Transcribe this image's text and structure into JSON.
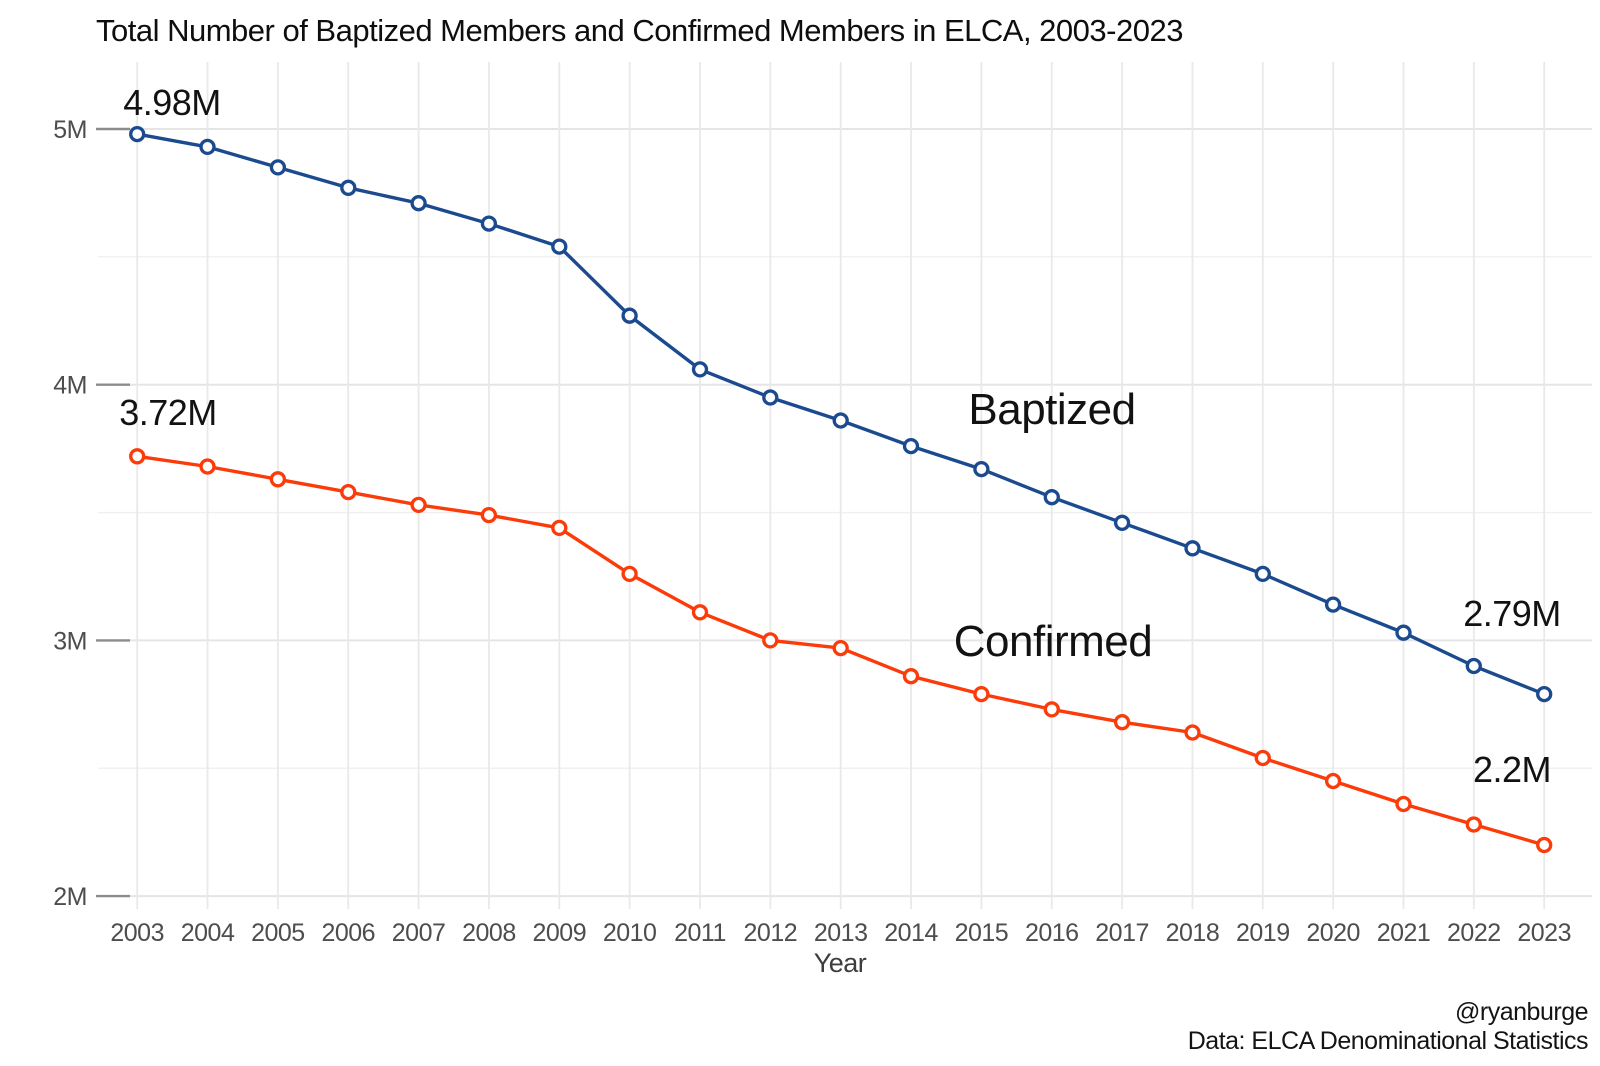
{
  "title": "Total Number of Baptized Members and Confirmed Members in ELCA, 2003-2023",
  "captions": {
    "handle": "@ryanburge",
    "source": "Data: ELCA Denominational Statistics"
  },
  "chart_data": {
    "type": "line",
    "x": [
      2003,
      2004,
      2005,
      2006,
      2007,
      2008,
      2009,
      2010,
      2011,
      2012,
      2013,
      2014,
      2015,
      2016,
      2017,
      2018,
      2019,
      2020,
      2021,
      2022,
      2023
    ],
    "xlabel": "Year",
    "ylabel": "",
    "ylim": [
      2,
      5
    ],
    "yticks": [
      2,
      3,
      4,
      5
    ],
    "ytick_labels": [
      "2M",
      "3M",
      "4M",
      "5M"
    ],
    "yminor": [
      2.5,
      3.5,
      4.5
    ],
    "grid": "major-and-minor-horizontal, major-vertical",
    "legend_position": "inline-labels",
    "series": [
      {
        "name": "Baptized",
        "color": "#1b4a8f",
        "values": [
          4.98,
          4.93,
          4.85,
          4.77,
          4.71,
          4.63,
          4.54,
          4.27,
          4.06,
          3.95,
          3.86,
          3.76,
          3.67,
          3.56,
          3.46,
          3.36,
          3.26,
          3.14,
          3.03,
          2.9,
          2.79
        ]
      },
      {
        "name": "Confirmed",
        "color": "#fb3b09",
        "values": [
          3.72,
          3.68,
          3.63,
          3.58,
          3.53,
          3.49,
          3.44,
          3.26,
          3.11,
          3.0,
          2.97,
          2.86,
          2.79,
          2.73,
          2.68,
          2.64,
          2.54,
          2.45,
          2.36,
          2.28,
          2.2
        ]
      }
    ],
    "annotations": [
      {
        "text": "4.98M",
        "series": "Baptized",
        "year": 2003,
        "kind": "point-label"
      },
      {
        "text": "3.72M",
        "series": "Confirmed",
        "year": 2003,
        "kind": "point-label"
      },
      {
        "text": "2.79M",
        "series": "Baptized",
        "year": 2023,
        "kind": "point-label"
      },
      {
        "text": "2.2M",
        "series": "Confirmed",
        "year": 2023,
        "kind": "point-label"
      },
      {
        "text": "Baptized",
        "series": "Baptized",
        "kind": "series-label"
      },
      {
        "text": "Confirmed",
        "series": "Confirmed",
        "kind": "series-label"
      }
    ]
  }
}
